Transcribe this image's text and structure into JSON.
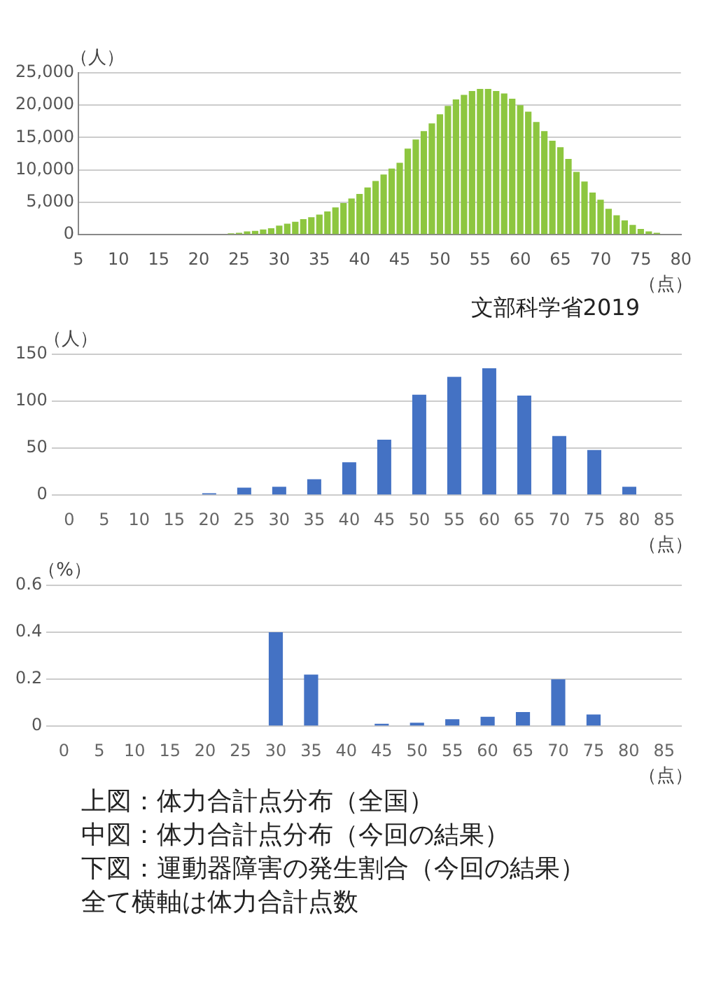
{
  "chart_data": [
    {
      "type": "bar",
      "ylabel": "（人）",
      "xlabel": "（点）",
      "color": "#8dc63f",
      "grid": "y",
      "legend": false,
      "annotations": [
        "文部科学省2019"
      ],
      "x": [
        22,
        23,
        24,
        25,
        26,
        27,
        28,
        29,
        30,
        31,
        32,
        33,
        34,
        35,
        36,
        37,
        38,
        39,
        40,
        41,
        42,
        43,
        44,
        45,
        46,
        47,
        48,
        49,
        50,
        51,
        52,
        53,
        54,
        55,
        56,
        57,
        58,
        59,
        60,
        61,
        62,
        63,
        64,
        65,
        66,
        67,
        68,
        69,
        70,
        71,
        72,
        73,
        74,
        75,
        76,
        77,
        78
      ],
      "values": [
        100,
        100,
        200,
        300,
        500,
        600,
        800,
        1000,
        1400,
        1700,
        2000,
        2400,
        2700,
        3100,
        3600,
        4200,
        4900,
        5600,
        6300,
        7300,
        8300,
        9300,
        10200,
        11100,
        13300,
        14700,
        16000,
        17200,
        18600,
        19900,
        20900,
        21600,
        22200,
        22500,
        22500,
        22200,
        21800,
        21000,
        20000,
        19000,
        17400,
        16000,
        14500,
        13500,
        11700,
        9700,
        8200,
        6500,
        5400,
        4000,
        3000,
        2200,
        1500,
        900,
        500,
        300,
        100
      ],
      "xlim": [
        5,
        80
      ],
      "xticks": [
        5,
        10,
        15,
        20,
        25,
        30,
        35,
        40,
        45,
        50,
        55,
        60,
        65,
        70,
        75,
        80
      ],
      "ylim": [
        0,
        25000
      ],
      "yticks": [
        0,
        {
          "value": 5000,
          "label": "5,000"
        },
        {
          "value": 10000,
          "label": "10,000"
        },
        {
          "value": 15000,
          "label": "15,000"
        },
        {
          "value": 20000,
          "label": "20,000"
        },
        {
          "value": 25000,
          "label": "25,000"
        }
      ]
    },
    {
      "type": "bar",
      "ylabel": "（人）",
      "xlabel": "（点）",
      "color": "#4472c4",
      "grid": "y",
      "legend": false,
      "categories": [
        "0",
        "5",
        "10",
        "15",
        "20",
        "25",
        "30",
        "35",
        "40",
        "45",
        "50",
        "55",
        "60",
        "65",
        "70",
        "75",
        "80",
        "85"
      ],
      "values": [
        0,
        0,
        0,
        0,
        2,
        8,
        9,
        17,
        35,
        59,
        107,
        126,
        135,
        106,
        63,
        48,
        9,
        0
      ],
      "ylim": [
        0,
        150
      ],
      "yticks": [
        0,
        50,
        100,
        150
      ]
    },
    {
      "type": "bar",
      "ylabel": "（%）",
      "xlabel": "（点）",
      "color": "#4472c4",
      "grid": "y",
      "legend": false,
      "categories": [
        "0",
        "5",
        "10",
        "15",
        "20",
        "25",
        "30",
        "35",
        "40",
        "45",
        "50",
        "55",
        "60",
        "65",
        "70",
        "75",
        "80",
        "85"
      ],
      "values": [
        0,
        0,
        0,
        0,
        0,
        0,
        0.4,
        0.22,
        0,
        0.01,
        0.015,
        0.03,
        0.04,
        0.06,
        0.2,
        0.05,
        0,
        0
      ],
      "ylim": [
        0,
        0.6
      ],
      "yticks": [
        0,
        0.2,
        0.4,
        0.6
      ]
    },
    {
      "type": "other",
      "annotations": [
        "上図：体力合計点分布（全国）",
        "中図：体力合計点分布（今回の結果）",
        "下図：運動器障害の発生割合（今回の結果）",
        "全て横軸は体力合計点数"
      ]
    }
  ]
}
